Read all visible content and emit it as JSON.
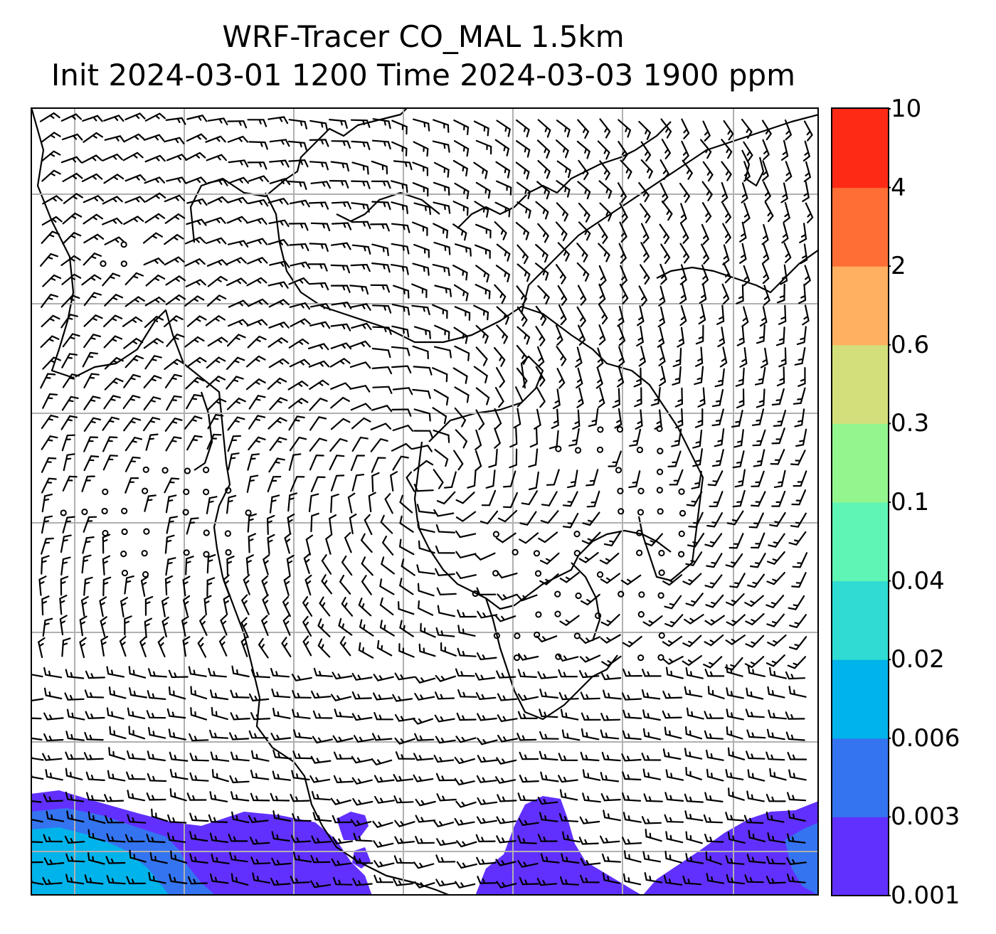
{
  "title": {
    "line1": "WRF-Tracer CO_MAL 1.5km",
    "line2": "Init 2024-03-01 1200 Time 2024-03-03 1900 ppm"
  },
  "colorbar": {
    "levels": [
      "0.001",
      "0.003",
      "0.006",
      "0.02",
      "0.04",
      "0.1",
      "0.3",
      "0.6",
      "2",
      "4",
      "10"
    ],
    "colors": [
      "#6130ff",
      "#3474f0",
      "#00b3ea",
      "#2fdbd2",
      "#5ff5b4",
      "#93f58e",
      "#d2df7a",
      "#ffb060",
      "#ff6e35",
      "#ff2a15"
    ]
  },
  "map": {
    "grid": true,
    "grid_color": "#b0b0b0",
    "wind_vectors": "barbs",
    "calm_marker": "circle"
  }
}
